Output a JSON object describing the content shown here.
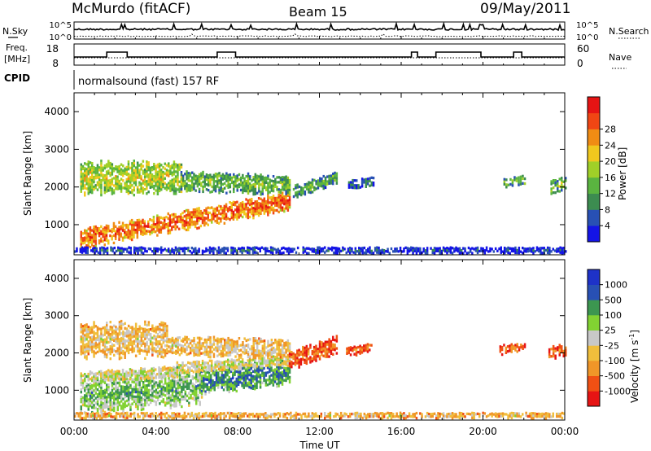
{
  "header": {
    "station": "McMurdo (fitACF)",
    "beam": "Beam 15",
    "date": "09/May/2011"
  },
  "top_panels": {
    "nsky": {
      "left_label": "N.Sky",
      "right_label": "N.Search",
      "left_ticks": [
        "10^5",
        "10^0"
      ],
      "right_ticks": [
        "10^5",
        "10^0"
      ]
    },
    "freq": {
      "left_label_line1": "Freq.",
      "left_label_line2": "[MHz]",
      "right_label": "Nave",
      "left_ticks": [
        "18",
        "8"
      ],
      "right_ticks": [
        "60",
        "0"
      ]
    },
    "cpid": {
      "label": "CPID",
      "text": "normalsound (fast) 157 RF"
    }
  },
  "colors": {
    "power": [
      "#1414e6",
      "#2850b4",
      "#3c8c50",
      "#5ab440",
      "#a0d028",
      "#f0c81e",
      "#f08c14",
      "#f04614",
      "#e61414"
    ],
    "velocity": [
      "#e61414",
      "#f05014",
      "#f09628",
      "#f0be3c",
      "#c8c8c8",
      "#82d232",
      "#3c9650",
      "#2850b4",
      "#1e32c8"
    ]
  },
  "chart_data": [
    {
      "type": "heatmap",
      "title": "",
      "xlabel": "",
      "ylabel": "Slant Range [km]",
      "x_ticks": [
        "00:00",
        "04:00",
        "08:00",
        "12:00",
        "16:00",
        "20:00",
        "00:00"
      ],
      "y_ticks": [
        "1000",
        "2000",
        "3000",
        "4000"
      ],
      "ylim": [
        200,
        4500
      ],
      "xlim_hours": [
        0,
        24
      ],
      "colorbar": {
        "label": "Power [dB]",
        "ticks": [
          "4",
          "8",
          "12",
          "16",
          "20",
          "24",
          "28"
        ],
        "range": [
          0,
          32
        ]
      },
      "regions": [
        {
          "t": [
            0.3,
            10.5
          ],
          "r_start": 620,
          "r_end": 1620,
          "width": 500,
          "value": 26
        },
        {
          "t": [
            0.3,
            5.2
          ],
          "r_start": 2250,
          "r_end": 2250,
          "width": 800,
          "value": 18
        },
        {
          "t": [
            5.2,
            10.5
          ],
          "r_start": 2150,
          "r_end": 2050,
          "width": 500,
          "value": 14
        },
        {
          "t": [
            10.7,
            12.8
          ],
          "r_start": 1850,
          "r_end": 2250,
          "width": 350,
          "value": 12
        },
        {
          "t": [
            21.0,
            22.0
          ],
          "r_start": 2100,
          "r_end": 2200,
          "width": 250,
          "value": 14
        },
        {
          "t": [
            23.3,
            24.0
          ],
          "r_start": 2000,
          "r_end": 2100,
          "width": 350,
          "value": 14
        },
        {
          "t": [
            13.4,
            14.6
          ],
          "r_start": 2050,
          "r_end": 2150,
          "width": 250,
          "value": 8
        },
        {
          "t": [
            0.0,
            24.0
          ],
          "r_start": 320,
          "r_end": 320,
          "width": 180,
          "value": 6
        }
      ]
    },
    {
      "type": "heatmap",
      "title": "",
      "xlabel": "Time UT",
      "ylabel": "Slant Range [km]",
      "x_ticks": [
        "00:00",
        "04:00",
        "08:00",
        "12:00",
        "16:00",
        "20:00",
        "00:00"
      ],
      "y_ticks": [
        "1000",
        "2000",
        "3000",
        "4000"
      ],
      "ylim": [
        200,
        4500
      ],
      "xlim_hours": [
        0,
        24
      ],
      "colorbar": {
        "label": "Velocity [m s^-1]",
        "label_main": "Velocity [m s",
        "label_sup": "-1",
        "label_end": "]",
        "ticks": [
          "-1000",
          "-500",
          "-100",
          "-25",
          "25",
          "100",
          "500",
          "1000"
        ]
      },
      "regions": [
        {
          "t": [
            0.3,
            6.2
          ],
          "r_start": 850,
          "r_end": 1100,
          "width": 900,
          "value": 6
        },
        {
          "t": [
            6.2,
            10.5
          ],
          "r_start": 1250,
          "r_end": 1500,
          "width": 700,
          "value": 7
        },
        {
          "t": [
            0.3,
            5.0
          ],
          "r_start": 1350,
          "r_end": 1500,
          "width": 300,
          "value": 5
        },
        {
          "t": [
            5.0,
            10.5
          ],
          "r_start": 1600,
          "r_end": 1800,
          "width": 300,
          "value": 5
        },
        {
          "t": [
            0.3,
            4.5
          ],
          "r_start": 2350,
          "r_end": 2350,
          "width": 900,
          "value": 4
        },
        {
          "t": [
            4.5,
            10.5
          ],
          "r_start": 2200,
          "r_end": 2100,
          "width": 500,
          "value": 4
        },
        {
          "t": [
            10.5,
            12.8
          ],
          "r_start": 1800,
          "r_end": 2200,
          "width": 500,
          "value": 2
        },
        {
          "t": [
            13.3,
            14.5
          ],
          "r_start": 2050,
          "r_end": 2150,
          "width": 250,
          "value": 2
        },
        {
          "t": [
            20.8,
            22.0
          ],
          "r_start": 2100,
          "r_end": 2150,
          "width": 250,
          "value": 2
        },
        {
          "t": [
            23.2,
            24.0
          ],
          "r_start": 2000,
          "r_end": 2100,
          "width": 350,
          "value": 2
        },
        {
          "t": [
            0.0,
            24.0
          ],
          "r_start": 330,
          "r_end": 330,
          "width": 160,
          "value": 4
        }
      ]
    }
  ]
}
